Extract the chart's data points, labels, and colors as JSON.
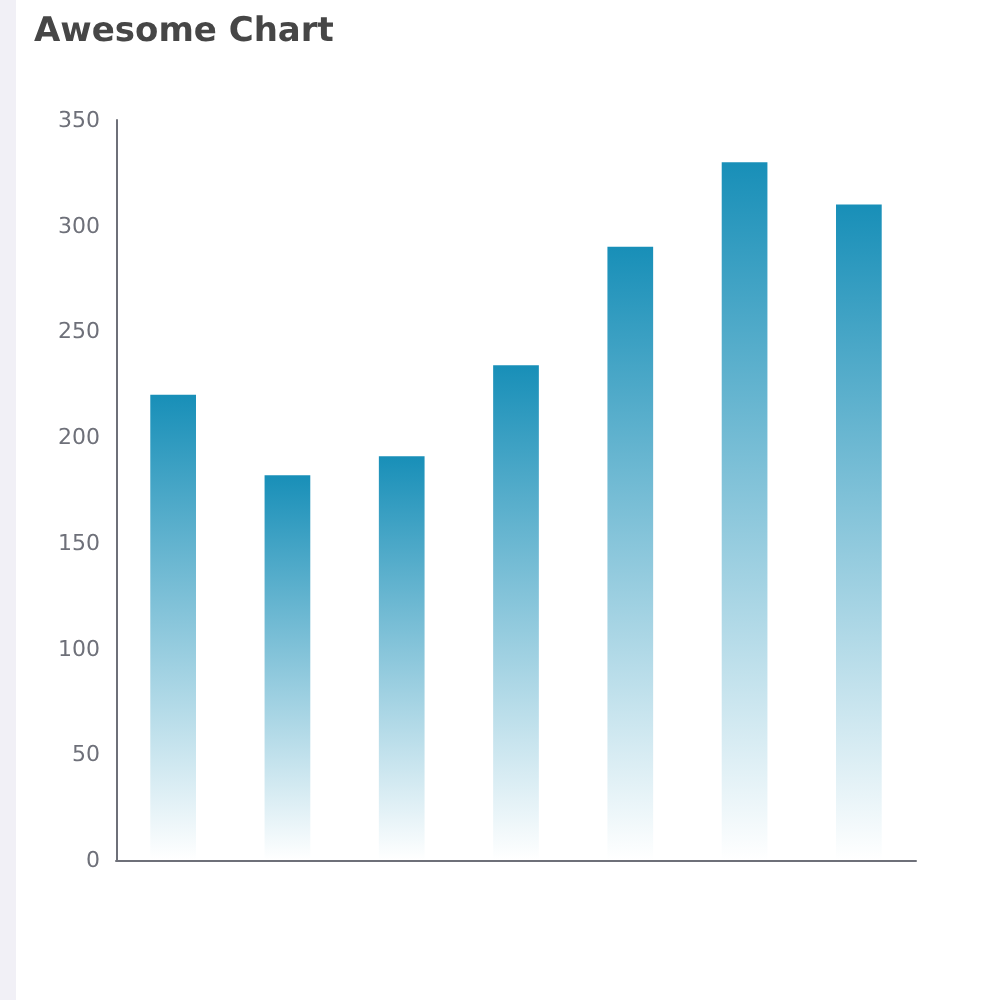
{
  "chart_data": {
    "type": "bar",
    "title": "Awesome Chart",
    "categories": [
      null,
      null,
      null,
      null,
      null,
      null,
      null
    ],
    "values": [
      220,
      182,
      191,
      234,
      290,
      330,
      310
    ],
    "color": "#188fb8",
    "ylim": [
      0,
      350
    ],
    "yticks": [
      0,
      50,
      100,
      150,
      200,
      250,
      300,
      350
    ],
    "grid": false
  }
}
